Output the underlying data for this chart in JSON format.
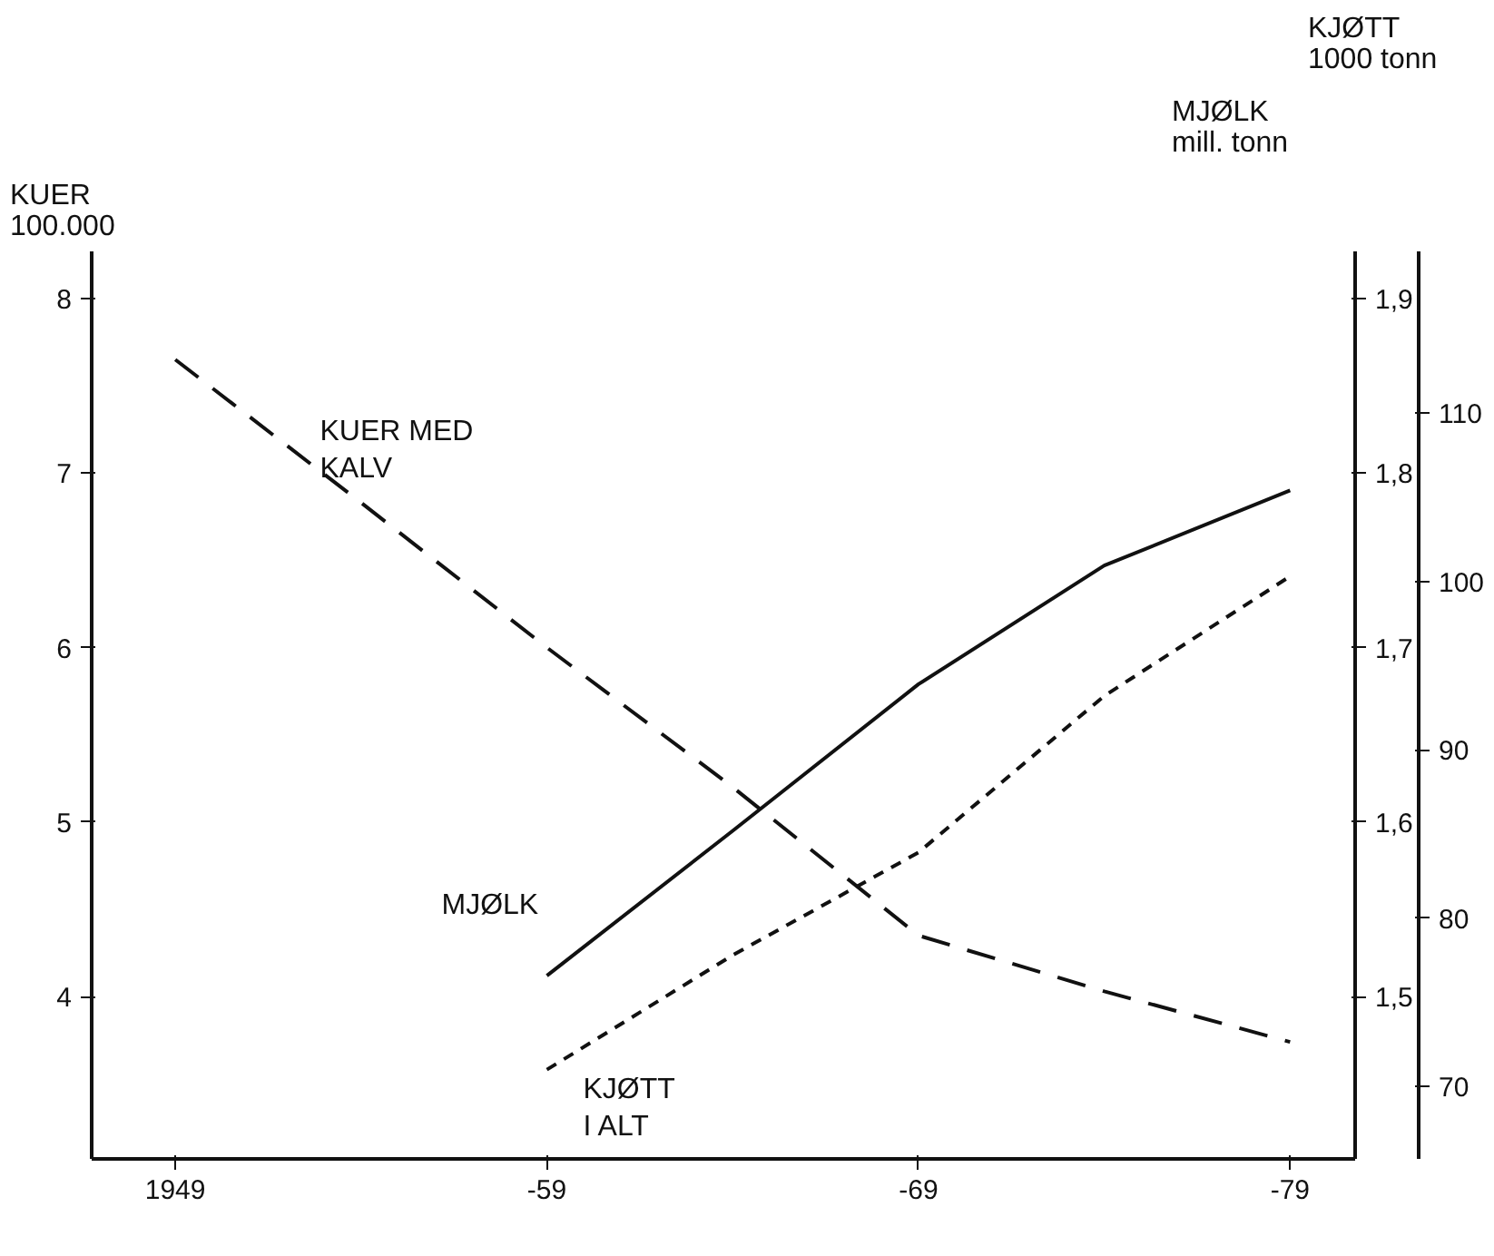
{
  "chart_data": {
    "type": "line",
    "ylabel": "KUER\n100.000",
    "y2label": "MJØLK\nmill. tonn",
    "y3label": "KJØTT\n1000 tonn",
    "categories": [
      "1949",
      null,
      "-59",
      null,
      "-69",
      null,
      "-79"
    ],
    "ylim": [
      3.07,
      8.27
    ],
    "yticks": [
      4,
      5,
      6,
      7,
      8
    ],
    "y2lim": [
      1.407,
      1.927
    ],
    "y2ticks": [
      {
        "value": 1.5,
        "label": "1,5"
      },
      {
        "value": 1.6,
        "label": "1,6"
      },
      {
        "value": 1.7,
        "label": "1,7"
      },
      {
        "value": 1.8,
        "label": "1,8"
      },
      {
        "value": 1.9,
        "label": "1,9"
      }
    ],
    "y3lim": [
      65.7,
      119.6
    ],
    "y3ticks": [
      70,
      80,
      90,
      100,
      110
    ],
    "grid": false,
    "legend": false,
    "marker": "none",
    "series": [
      {
        "name": "KUER MED\nKALV",
        "color": "#111111",
        "line_style": "dashed",
        "values": [
          7.65,
          6.83,
          6.0,
          5.2,
          4.35,
          4.03,
          3.74
        ]
      },
      {
        "name": "MJØLK",
        "color": "#111111",
        "line_style": "solid",
        "axis": "y2",
        "values": [
          null,
          null,
          1.512,
          1.595,
          1.679,
          1.747,
          1.79
        ]
      },
      {
        "name": "KJØTT\nI ALT",
        "color": "#111111",
        "line_style": "dotted",
        "axis": "y3",
        "values": [
          null,
          null,
          71,
          77.8,
          83.9,
          93.2,
          100.3
        ]
      }
    ]
  }
}
